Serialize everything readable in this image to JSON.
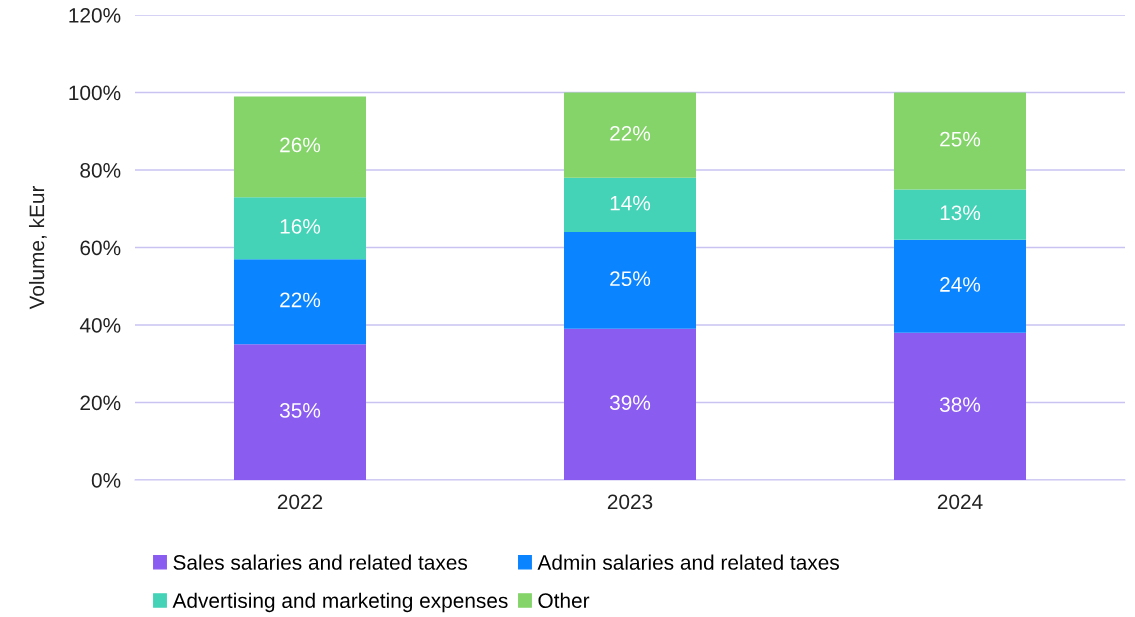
{
  "chart_data": {
    "type": "bar",
    "stacked": true,
    "ylabel": "Volume, kEur",
    "categories": [
      "2022",
      "2023",
      "2024"
    ],
    "series": [
      {
        "name": "Sales salaries and related taxes",
        "color": "#8b5cf0",
        "values": [
          35,
          39,
          38
        ],
        "value_labels": [
          "35%",
          "39%",
          "38%"
        ]
      },
      {
        "name": "Admin salaries and related taxes",
        "color": "#0a84ff",
        "values": [
          22,
          25,
          24
        ],
        "value_labels": [
          "22%",
          "25%",
          "24%"
        ]
      },
      {
        "name": "Advertising and marketing expenses",
        "color": "#45d3b8",
        "values": [
          16,
          14,
          13
        ],
        "value_labels": [
          "16%",
          "14%",
          "13%"
        ]
      },
      {
        "name": "Other",
        "color": "#84d46a",
        "values": [
          26,
          22,
          25
        ],
        "value_labels": [
          "26%",
          "22%",
          "25%"
        ]
      }
    ],
    "ylim": [
      0,
      120
    ],
    "yticks": [
      {
        "value": 0,
        "label": "0%"
      },
      {
        "value": 20,
        "label": "20%"
      },
      {
        "value": 40,
        "label": "40%"
      },
      {
        "value": 60,
        "label": "60%"
      },
      {
        "value": 80,
        "label": "80%"
      },
      {
        "value": 100,
        "label": "100%"
      },
      {
        "value": 120,
        "label": "120%"
      }
    ],
    "grid": "y",
    "legend": "bottom"
  }
}
